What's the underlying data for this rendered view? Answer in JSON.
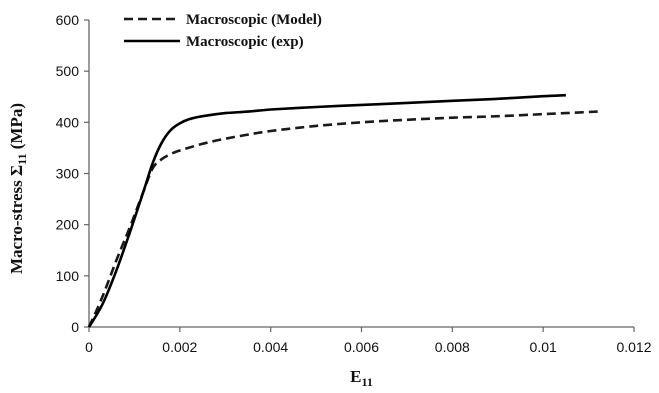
{
  "chart_data": {
    "type": "line",
    "title": "",
    "xlabel": "E",
    "xlabel_sub": "11",
    "ylabel": "Macro-stress Σ",
    "ylabel_sub": "11",
    "ylabel_suffix": " (MPa)",
    "xlim": [
      0,
      0.012
    ],
    "ylim": [
      0,
      600
    ],
    "xticks": [
      0,
      0.002,
      0.004,
      0.006,
      0.008,
      0.01,
      0.012
    ],
    "xtick_labels": [
      "0",
      "0.002",
      "0.004",
      "0.006",
      "0.008",
      "0.01",
      "0.012"
    ],
    "yticks": [
      0,
      100,
      200,
      300,
      400,
      500,
      600
    ],
    "ytick_labels": [
      "0",
      "100",
      "200",
      "300",
      "400",
      "500",
      "600"
    ],
    "grid": false,
    "legend_position": "top-left",
    "series": [
      {
        "name": "Macroscopic (Model)",
        "style": "dashed",
        "color": "#1a1a1a",
        "x": [
          0,
          0.0003,
          0.0006,
          0.0009,
          0.0012,
          0.0014,
          0.0016,
          0.0018,
          0.002,
          0.0025,
          0.003,
          0.0035,
          0.004,
          0.005,
          0.006,
          0.007,
          0.008,
          0.009,
          0.01,
          0.0105,
          0.0112
        ],
        "y": [
          0,
          60,
          130,
          195,
          265,
          310,
          328,
          338,
          345,
          358,
          368,
          376,
          383,
          393,
          400,
          405,
          409,
          412,
          416,
          418,
          421
        ]
      },
      {
        "name": "Macroscopic (exp)",
        "style": "solid",
        "color": "#000000",
        "x": [
          0,
          0.0003,
          0.0006,
          0.0009,
          0.0012,
          0.0014,
          0.0016,
          0.0018,
          0.002,
          0.0022,
          0.0025,
          0.003,
          0.0035,
          0.004,
          0.005,
          0.006,
          0.007,
          0.008,
          0.009,
          0.01,
          0.0105
        ],
        "y": [
          0,
          45,
          110,
          185,
          265,
          320,
          360,
          385,
          398,
          406,
          412,
          418,
          421,
          425,
          430,
          434,
          438,
          442,
          446,
          451,
          453
        ]
      }
    ]
  }
}
